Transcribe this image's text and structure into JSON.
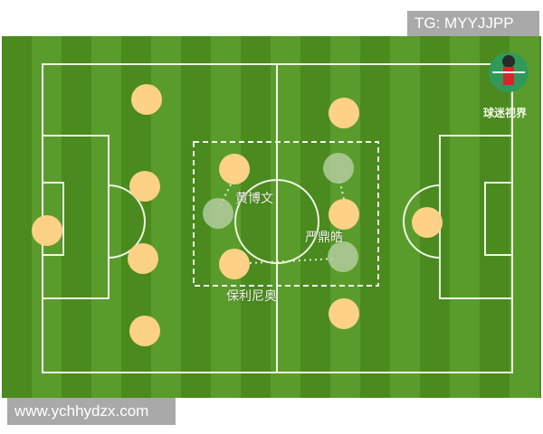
{
  "watermarks": {
    "top_right": "TG: MYYJJPP",
    "bottom_left": "www.ychhydzx.com"
  },
  "brand": {
    "text": "球迷视界",
    "icon": "player-avatar-icon"
  },
  "labels": {
    "player_a": "黄博文",
    "player_b": "严鼎皓",
    "player_c": "保利尼奥"
  },
  "colors": {
    "grass_dark": "#4a8a1e",
    "grass_light": "#5a9c2c",
    "player": "#fdd186",
    "ghost": "#b8cfa6",
    "lines": "#f2f8ea"
  }
}
